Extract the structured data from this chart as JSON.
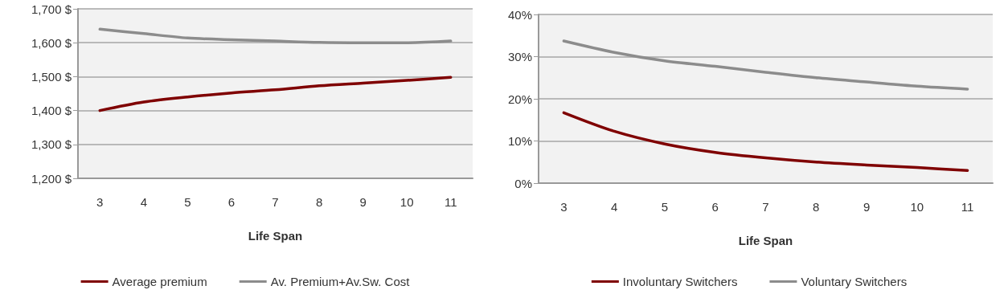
{
  "chart_data": [
    {
      "type": "line",
      "xlabel": "Life Span",
      "categories": [
        "3",
        "4",
        "5",
        "6",
        "7",
        "8",
        "9",
        "10",
        "11"
      ],
      "series": [
        {
          "name": "Average premium",
          "color": "#7f0000",
          "values": [
            1400,
            1425,
            1440,
            1452,
            1461,
            1473,
            1481,
            1489,
            1498
          ]
        },
        {
          "name": "Av. Premium+Av.Sw. Cost",
          "color": "#8c8c8c",
          "values": [
            1640,
            1627,
            1614,
            1609,
            1605,
            1601,
            1600,
            1600,
            1605
          ]
        }
      ],
      "ylim": [
        1200,
        1700
      ],
      "yticks": [
        {
          "value": 1200,
          "label": "1,200 $"
        },
        {
          "value": 1300,
          "label": "1,300 $"
        },
        {
          "value": 1400,
          "label": "1,400 $"
        },
        {
          "value": 1500,
          "label": "1,500 $"
        },
        {
          "value": 1600,
          "label": "1,600 $"
        },
        {
          "value": 1700,
          "label": "1,700 $"
        }
      ],
      "grid": "y",
      "legend": "bottom",
      "marker": "none",
      "line_style": "solid"
    },
    {
      "type": "line",
      "xlabel": "Life Span",
      "categories": [
        "3",
        "4",
        "5",
        "6",
        "7",
        "8",
        "9",
        "10",
        "11"
      ],
      "series": [
        {
          "name": "Involuntary Switchers",
          "color": "#7f0000",
          "values": [
            16.7,
            12.3,
            9.3,
            7.3,
            6,
            5,
            4.3,
            3.7,
            3
          ]
        },
        {
          "name": "Voluntary Switchers",
          "color": "#8c8c8c",
          "values": [
            33.7,
            31,
            29,
            27.7,
            26.3,
            25,
            24,
            23,
            22.3
          ]
        }
      ],
      "ylim": [
        0,
        40
      ],
      "yticks": [
        {
          "value": 0,
          "label": "0%"
        },
        {
          "value": 10,
          "label": "10%"
        },
        {
          "value": 20,
          "label": "20%"
        },
        {
          "value": 30,
          "label": "30%"
        },
        {
          "value": 40,
          "label": "40%"
        }
      ],
      "grid": "y",
      "legend": "bottom",
      "marker": "none",
      "line_style": "solid"
    }
  ]
}
